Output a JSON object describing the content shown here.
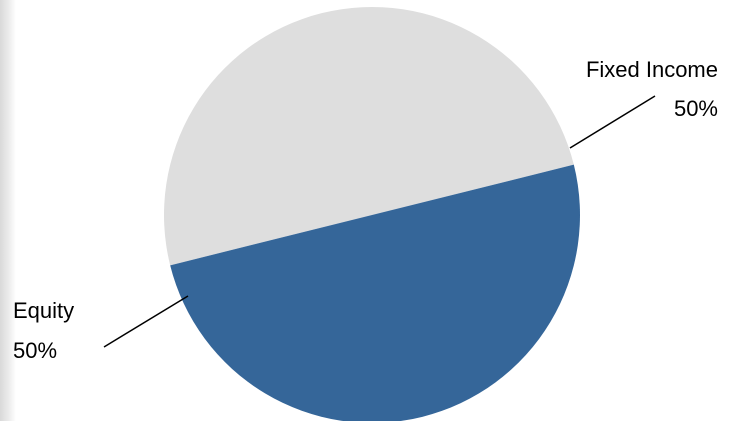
{
  "chart_data": {
    "type": "pie",
    "title": "",
    "slices": [
      {
        "label": "Fixed Income",
        "value": 50,
        "value_label": "50%",
        "color": "#DEDEDE"
      },
      {
        "label": "Equity",
        "value": 50,
        "value_label": "50%",
        "color": "#356699"
      }
    ],
    "legend": "none",
    "data_labels": "outside with leader lines"
  }
}
